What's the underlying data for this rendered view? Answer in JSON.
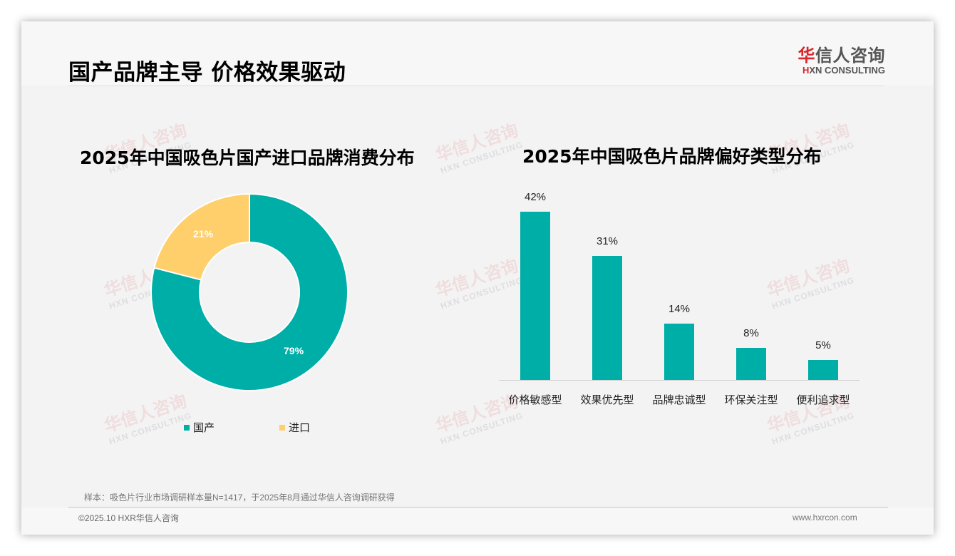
{
  "header": {
    "title": "国产品牌主导 价格效果驱动",
    "logo_cn_accent": "华",
    "logo_cn_rest": "信人咨询",
    "logo_en_accent": "H",
    "logo_en_rest": "XN CONSULTING"
  },
  "watermark": {
    "cn": "华信人咨询",
    "en": "HXN CONSULTING"
  },
  "left_chart": {
    "title": "2025年中国吸色片国产进口品牌消费分布",
    "slices": [
      {
        "label": "国产",
        "value": 79,
        "display": "79%",
        "color": "#00aea8"
      },
      {
        "label": "进口",
        "value": 21,
        "display": "21%",
        "color": "#fecf6a"
      }
    ]
  },
  "right_chart": {
    "title": "2025年中国吸色片品牌偏好类型分布",
    "bars": [
      {
        "label": "价格敏感型",
        "value": 42,
        "display": "42%"
      },
      {
        "label": "效果优先型",
        "value": 31,
        "display": "31%"
      },
      {
        "label": "品牌忠诚型",
        "value": 14,
        "display": "14%"
      },
      {
        "label": "环保关注型",
        "value": 8,
        "display": "8%"
      },
      {
        "label": "便利追求型",
        "value": 5,
        "display": "5%"
      }
    ],
    "bar_color": "#00aea8"
  },
  "footer": {
    "note": "样本：吸色片行业市场调研样本量N=1417，于2025年8月通过华信人咨询调研获得",
    "copyright": "©2025.10 HXR华信人咨询",
    "website": "www.hxrcon.com"
  },
  "chart_data": [
    {
      "type": "pie",
      "title": "2025年中国吸色片国产进口品牌消费分布",
      "categories": [
        "国产",
        "进口"
      ],
      "values": [
        79,
        21
      ],
      "unit": "%",
      "donut": true,
      "legend_position": "bottom"
    },
    {
      "type": "bar",
      "title": "2025年中国吸色片品牌偏好类型分布",
      "categories": [
        "价格敏感型",
        "效果优先型",
        "品牌忠诚型",
        "环保关注型",
        "便利追求型"
      ],
      "values": [
        42,
        31,
        14,
        8,
        5
      ],
      "unit": "%",
      "xlabel": "",
      "ylabel": "",
      "ylim": [
        0,
        45
      ],
      "grid": false
    }
  ]
}
